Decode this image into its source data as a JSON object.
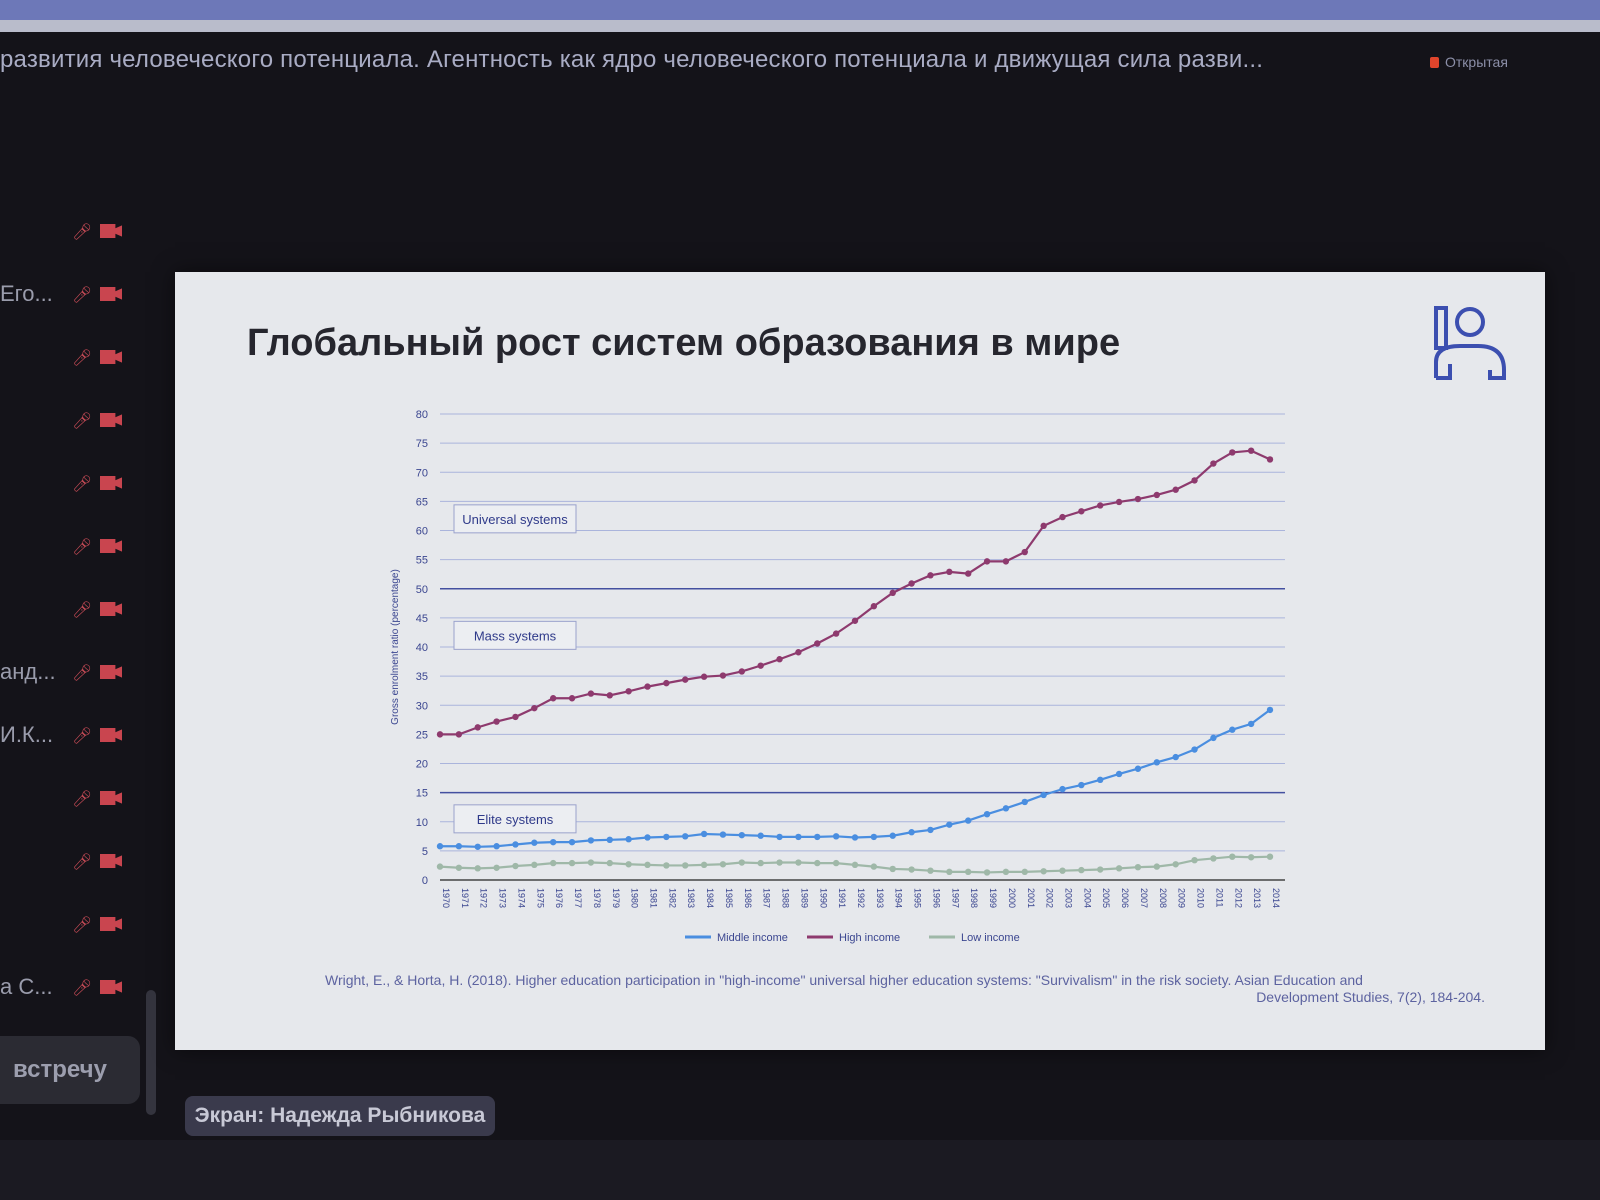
{
  "meeting": {
    "title": "развития человеческого потенциала. Агентность как ядро человеческого потенциала и движущая сила разви...",
    "badge": "Открытая",
    "screen_label": "Экран: Надежда Рыбникова",
    "join_button": "встречу"
  },
  "participants": [
    {
      "name": ""
    },
    {
      "name": "Его..."
    },
    {
      "name": ""
    },
    {
      "name": ""
    },
    {
      "name": ""
    },
    {
      "name": ""
    },
    {
      "name": ""
    },
    {
      "name": "анд..."
    },
    {
      "name": "И.К..."
    },
    {
      "name": ""
    },
    {
      "name": ""
    },
    {
      "name": ""
    },
    {
      "name": "а С..."
    }
  ],
  "icons": {
    "mic": "mic-muted-icon",
    "camera": "camera-off-icon",
    "logo": "person-logo-icon"
  },
  "slide": {
    "title": "Глобальный рост систем образования в мире",
    "citation_line1": "Wright, E., & Horta, H. (2018). Higher education participation in \"high-income\" universal higher education systems: \"Survivalism\" in the risk society. Asian Education and",
    "citation_line2": "Development Studies, 7(2), 184-204."
  },
  "chart_data": {
    "type": "line",
    "title": "",
    "xlabel": "",
    "ylabel": "Gross enrolment ratio (percentage)",
    "ylim": [
      0,
      80
    ],
    "yticks": [
      0,
      5,
      10,
      15,
      20,
      25,
      30,
      35,
      40,
      45,
      50,
      55,
      60,
      65,
      70,
      75,
      80
    ],
    "grid": true,
    "legend_position": "bottom",
    "x": [
      1970,
      1971,
      1972,
      1973,
      1974,
      1975,
      1976,
      1977,
      1978,
      1979,
      1980,
      1981,
      1982,
      1983,
      1984,
      1985,
      1986,
      1987,
      1988,
      1989,
      1990,
      1991,
      1992,
      1993,
      1994,
      1995,
      1996,
      1997,
      1998,
      1999,
      2000,
      2001,
      2002,
      2003,
      2004,
      2005,
      2006,
      2007,
      2008,
      2009,
      2010,
      2011,
      2012,
      2013,
      2014
    ],
    "series": [
      {
        "name": "Middle income",
        "color": "#4a8ee0",
        "values": [
          5.8,
          5.8,
          5.7,
          5.8,
          6.1,
          6.4,
          6.5,
          6.5,
          6.8,
          6.9,
          7.0,
          7.3,
          7.4,
          7.5,
          7.9,
          7.8,
          7.7,
          7.6,
          7.4,
          7.4,
          7.4,
          7.5,
          7.3,
          7.4,
          7.6,
          8.2,
          8.6,
          9.5,
          10.2,
          11.3,
          12.3,
          13.4,
          14.6,
          15.6,
          16.3,
          17.2,
          18.2,
          19.1,
          20.2,
          21.1,
          22.4,
          24.4,
          25.8,
          26.8,
          29.2
        ]
      },
      {
        "name": "High income",
        "color": "#8e3a6e",
        "values": [
          25.0,
          25.0,
          26.2,
          27.2,
          28.0,
          29.5,
          31.2,
          31.2,
          32.0,
          31.7,
          32.4,
          33.2,
          33.8,
          34.4,
          34.9,
          35.1,
          35.8,
          36.8,
          37.9,
          39.1,
          40.6,
          42.3,
          44.5,
          47.0,
          49.3,
          50.9,
          52.3,
          52.9,
          52.6,
          54.7,
          54.7,
          56.3,
          60.8,
          62.3,
          63.3,
          64.3,
          64.9,
          65.4,
          66.1,
          67.0,
          68.6,
          71.5,
          73.4,
          73.7,
          72.2
        ]
      },
      {
        "name": "Low income",
        "color": "#9fb8a8",
        "values": [
          2.3,
          2.1,
          2.0,
          2.1,
          2.4,
          2.6,
          2.9,
          2.9,
          3.0,
          2.9,
          2.7,
          2.6,
          2.5,
          2.5,
          2.6,
          2.7,
          3.0,
          2.9,
          3.0,
          3.0,
          2.9,
          2.9,
          2.6,
          2.3,
          1.9,
          1.8,
          1.6,
          1.4,
          1.4,
          1.3,
          1.4,
          1.4,
          1.5,
          1.6,
          1.7,
          1.8,
          2.0,
          2.2,
          2.3,
          2.7,
          3.4,
          3.7,
          4.0,
          3.9,
          4.0
        ]
      }
    ],
    "thresholds": [
      15,
      50
    ],
    "annotations": [
      {
        "text": "Universal systems",
        "y": 62
      },
      {
        "text": "Mass systems",
        "y": 42
      },
      {
        "text": "Elite systems",
        "y": 10.5
      }
    ]
  }
}
